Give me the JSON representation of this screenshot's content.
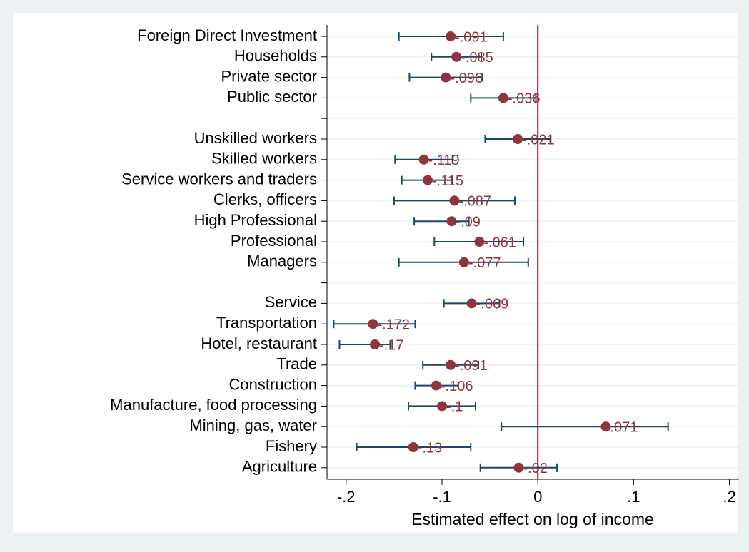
{
  "chart_data": {
    "type": "coefplot",
    "xlabel": "Estimated effect on log of income",
    "categories": [
      "Foreign Direct Investment",
      "Households",
      "Private sector",
      "Public sector",
      null,
      "Unskilled workers",
      "Skilled workers",
      "Service workers and traders",
      "Clerks, officers",
      "High Professional",
      "Professional",
      "Managers",
      null,
      "Service",
      "Transportation",
      "Hotel, restaurant",
      "Trade",
      "Construction",
      "Manufacture, food processing",
      "Mining, gas, water",
      "Fishery",
      "Agriculture"
    ],
    "values": [
      -0.091,
      -0.085,
      -0.096,
      -0.036,
      null,
      -0.021,
      -0.119,
      -0.115,
      -0.087,
      -0.09,
      -0.061,
      -0.077,
      null,
      -0.069,
      -0.172,
      -0.17,
      -0.091,
      -0.106,
      -0.1,
      0.071,
      -0.13,
      -0.02
    ],
    "value_labels": [
      "-.091",
      "-.085",
      "-.096",
      "-.036",
      null,
      "-.021",
      "-.119",
      "-.115",
      "-.087",
      "-.09",
      "-.061",
      "-.077",
      null,
      "-.069",
      "-.172",
      "-.17",
      "-.091",
      "-.106",
      "-.1",
      ".071",
      "-.13",
      "-.02"
    ],
    "ci_low": [
      -0.145,
      -0.111,
      -0.134,
      -0.07,
      null,
      -0.055,
      -0.149,
      -0.142,
      -0.15,
      -0.129,
      -0.108,
      -0.145,
      null,
      -0.098,
      -0.213,
      -0.207,
      -0.12,
      -0.128,
      -0.135,
      -0.038,
      -0.189,
      -0.06
    ],
    "ci_high": [
      -0.036,
      -0.059,
      -0.058,
      -0.002,
      null,
      0.013,
      -0.089,
      -0.089,
      -0.024,
      -0.072,
      -0.015,
      -0.01,
      null,
      -0.04,
      -0.128,
      -0.154,
      -0.062,
      -0.083,
      -0.065,
      0.136,
      -0.07,
      0.02
    ],
    "point_color": "#90353b",
    "ci_color": "#1a476f",
    "ref_line": 0,
    "ref_color": "#c10534",
    "xlim": [
      -0.22,
      0.21
    ],
    "xticks": [
      {
        "value": -0.2,
        "label": "-.2"
      },
      {
        "value": -0.1,
        "label": "-.1"
      },
      0,
      {
        "value": 0.1,
        "label": ".1"
      },
      {
        "value": 0.2,
        "label": ".2"
      }
    ],
    "grid": true
  }
}
